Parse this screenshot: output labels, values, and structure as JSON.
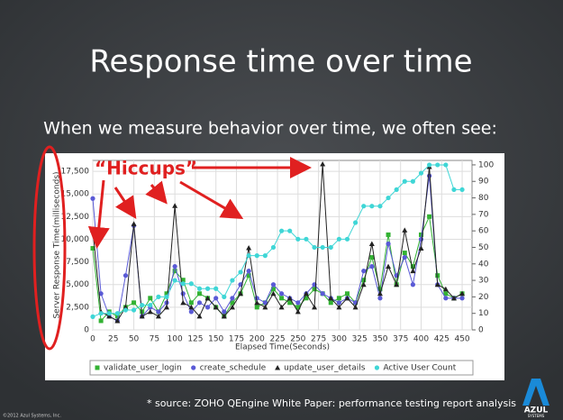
{
  "header": {
    "title": "Response time over time",
    "subtitle": "When we measure behavior over time, we often see:"
  },
  "annotation": "“Hiccups”",
  "footer": {
    "source": "* source: ZOHO QEngine White Paper: performance testing report analysis",
    "copyright": "©2012 Azul Systems, Inc.",
    "logo": "AZUL",
    "logo_sub": "SYSTEMS"
  },
  "chart_data": {
    "type": "line",
    "x_label": "Elapsed Time(Seconds)",
    "y_label": "Server Response Time(milliseconds)",
    "y2_label": "Active User Count",
    "x": [
      0,
      10,
      20,
      30,
      40,
      50,
      60,
      70,
      80,
      90,
      100,
      110,
      120,
      130,
      140,
      150,
      160,
      170,
      180,
      190,
      200,
      210,
      220,
      230,
      240,
      250,
      260,
      270,
      280,
      290,
      300,
      310,
      320,
      330,
      340,
      350,
      360,
      370,
      380,
      390,
      400,
      410,
      420,
      430,
      440,
      450
    ],
    "xlim": [
      0,
      462
    ],
    "xticks": [
      0,
      25,
      50,
      75,
      100,
      125,
      150,
      175,
      200,
      225,
      250,
      275,
      300,
      325,
      350,
      375,
      400,
      425,
      450
    ],
    "ylim": [
      0,
      18700
    ],
    "yticks": [
      0,
      {
        "value": 2500,
        "label": "2,500"
      },
      {
        "value": 5000,
        "label": "5,000"
      },
      {
        "value": 7500,
        "label": "7,500"
      },
      {
        "value": 10000,
        "label": "10,000"
      },
      {
        "value": 12500,
        "label": "12,500"
      },
      {
        "value": 15000,
        "label": "15,000"
      },
      {
        "value": 17500,
        "label": "17,500"
      }
    ],
    "y2lim": [
      0,
      102.7
    ],
    "y2ticks": [
      0,
      10,
      20,
      30,
      40,
      50,
      60,
      70,
      80,
      90,
      100
    ],
    "grid": true,
    "series": [
      {
        "name": "validate_user_login",
        "color": "#33b233",
        "marker": "square",
        "values": [
          9000,
          1000,
          2000,
          1500,
          2500,
          3000,
          2000,
          3500,
          2000,
          4000,
          6500,
          5500,
          3000,
          4000,
          3500,
          2500,
          1500,
          3000,
          4000,
          6000,
          2500,
          3000,
          4500,
          3500,
          3000,
          2500,
          3500,
          4500,
          4000,
          3000,
          3500,
          4000,
          3000,
          5500,
          8000,
          4500,
          10500,
          5000,
          8500,
          7000,
          10500,
          12500,
          6000,
          4000,
          3500,
          4000
        ]
      },
      {
        "name": "create_schedule",
        "color": "#5a5ad6",
        "marker": "circle",
        "values": [
          14500,
          4000,
          1500,
          1000,
          6000,
          11500,
          1500,
          2500,
          2000,
          3000,
          7000,
          4000,
          2000,
          3000,
          2500,
          3500,
          2000,
          3500,
          5000,
          6500,
          3500,
          3000,
          5000,
          4000,
          3500,
          3000,
          4000,
          5000,
          4000,
          3500,
          3000,
          3500,
          3000,
          6500,
          7000,
          3500,
          9500,
          6000,
          8000,
          5000,
          10000,
          17000,
          5000,
          3500,
          3500,
          3500
        ]
      },
      {
        "name": "update_user_details",
        "color": "#222222",
        "marker": "triangle",
        "values": [
          11000,
          2000,
          1500,
          1000,
          2500,
          11700,
          1500,
          2000,
          1500,
          2500,
          13700,
          3000,
          2500,
          1500,
          3500,
          2500,
          1500,
          2500,
          4000,
          9050,
          3000,
          2500,
          4000,
          2500,
          3500,
          2000,
          4000,
          2500,
          18300,
          3500,
          2500,
          3500,
          2500,
          5000,
          9500,
          4000,
          7000,
          5000,
          11000,
          6500,
          9000,
          18000,
          5000,
          4500,
          3500,
          4000
        ]
      },
      {
        "name": "Active User Count",
        "color": "#3fd6d6",
        "marker": "circle",
        "axis": "y2",
        "values": [
          8,
          10,
          10,
          10,
          12,
          12,
          15,
          15,
          20,
          20,
          30,
          28,
          28,
          25,
          25,
          25,
          20,
          30,
          35,
          45,
          45,
          45,
          50,
          60,
          60,
          55,
          55,
          50,
          50,
          50,
          55,
          55,
          65,
          75,
          75,
          75,
          80,
          85,
          90,
          90,
          95,
          100,
          100,
          100,
          85,
          85
        ]
      }
    ]
  }
}
